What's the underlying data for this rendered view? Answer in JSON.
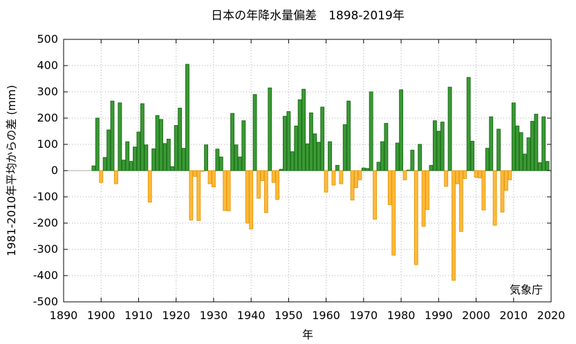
{
  "chart_data": {
    "type": "bar",
    "title": "日本の年降水量偏差　1898-2019年",
    "xlabel": "年",
    "ylabel": "1981-2010年平均からの差 (mm)",
    "credit": "気象庁",
    "xlim": [
      1890,
      2020
    ],
    "ylim": [
      -500,
      500
    ],
    "x_ticks": [
      1890,
      1900,
      1910,
      1920,
      1930,
      1940,
      1950,
      1960,
      1970,
      1980,
      1990,
      2000,
      2010,
      2020
    ],
    "y_ticks": [
      -500,
      -400,
      -300,
      -200,
      -100,
      0,
      100,
      200,
      300,
      400,
      500
    ],
    "grid": true,
    "colors": {
      "positive_fill": "#3a9a34",
      "positive_edge": "#1f6e1c",
      "negative_fill": "#ffba3a",
      "negative_edge": "#e69a10"
    },
    "years": [
      1898,
      1899,
      1900,
      1901,
      1902,
      1903,
      1904,
      1905,
      1906,
      1907,
      1908,
      1909,
      1910,
      1911,
      1912,
      1913,
      1914,
      1915,
      1916,
      1917,
      1918,
      1919,
      1920,
      1921,
      1922,
      1923,
      1924,
      1925,
      1926,
      1927,
      1928,
      1929,
      1930,
      1931,
      1932,
      1933,
      1934,
      1935,
      1936,
      1937,
      1938,
      1939,
      1940,
      1941,
      1942,
      1943,
      1944,
      1945,
      1946,
      1947,
      1948,
      1949,
      1950,
      1951,
      1952,
      1953,
      1954,
      1955,
      1956,
      1957,
      1958,
      1959,
      1960,
      1961,
      1962,
      1963,
      1964,
      1965,
      1966,
      1967,
      1968,
      1969,
      1970,
      1971,
      1972,
      1973,
      1974,
      1975,
      1976,
      1977,
      1978,
      1979,
      1980,
      1981,
      1982,
      1983,
      1984,
      1985,
      1986,
      1987,
      1988,
      1989,
      1990,
      1991,
      1992,
      1993,
      1994,
      1995,
      1996,
      1997,
      1998,
      1999,
      2000,
      2001,
      2002,
      2003,
      2004,
      2005,
      2006,
      2007,
      2008,
      2009,
      2010,
      2011,
      2012,
      2013,
      2014,
      2015,
      2016,
      2017,
      2018,
      2019
    ],
    "values": [
      18,
      200,
      -45,
      50,
      155,
      265,
      -50,
      258,
      40,
      110,
      35,
      90,
      147,
      255,
      98,
      -120,
      83,
      210,
      195,
      103,
      120,
      15,
      172,
      238,
      85,
      405,
      -188,
      -22,
      -190,
      -3,
      98,
      -50,
      -62,
      82,
      52,
      -152,
      -153,
      218,
      98,
      52,
      190,
      -200,
      -222,
      290,
      -105,
      -38,
      -160,
      315,
      -45,
      -110,
      5,
      207,
      225,
      72,
      170,
      270,
      310,
      102,
      220,
      140,
      108,
      242,
      -82,
      110,
      -55,
      20,
      -50,
      175,
      265,
      -112,
      -65,
      -35,
      10,
      8,
      300,
      -185,
      32,
      110,
      180,
      -130,
      -322,
      105,
      308,
      -35,
      2,
      78,
      -358,
      100,
      -212,
      -148,
      20,
      190,
      150,
      185,
      -60,
      318,
      -418,
      -50,
      -232,
      -30,
      355,
      112,
      -25,
      -28,
      -150,
      85,
      205,
      -208,
      158,
      -158,
      -75,
      -35,
      258,
      170,
      145,
      63,
      125,
      188,
      215,
      30,
      205,
      35
    ]
  }
}
